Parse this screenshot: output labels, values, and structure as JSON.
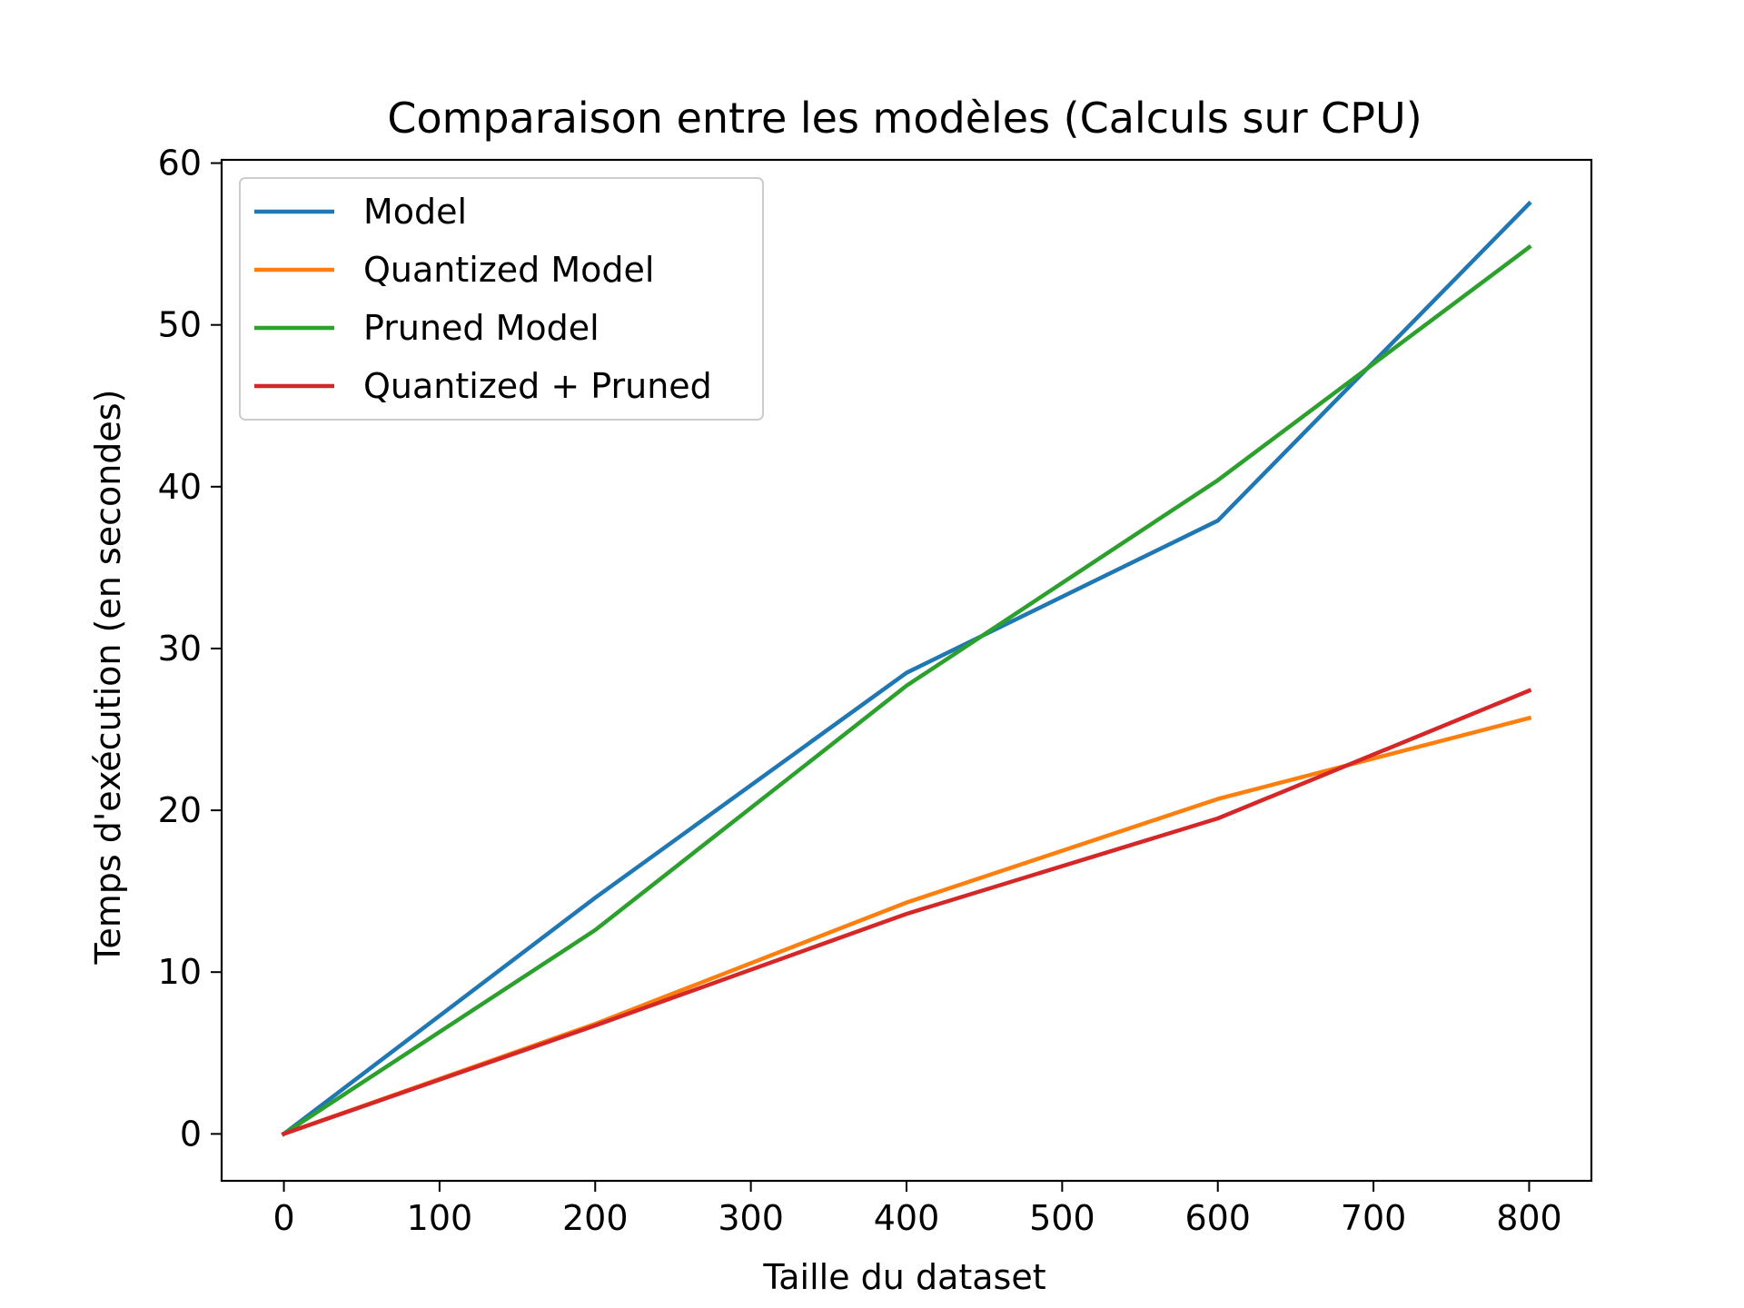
{
  "chart_data": {
    "type": "line",
    "title": "Comparaison entre les modèles (Calculs sur CPU)",
    "xlabel": "Taille du dataset",
    "ylabel": "Temps d'exécution (en secondes)",
    "xlim": [
      -40,
      840
    ],
    "ylim": [
      -2.9,
      60.2
    ],
    "xticks": [
      0,
      100,
      200,
      300,
      400,
      500,
      600,
      700,
      800
    ],
    "yticks": [
      0,
      10,
      20,
      30,
      40,
      50,
      60
    ],
    "grid": false,
    "legend_position": "top-left",
    "x": [
      0,
      200,
      400,
      600,
      800
    ],
    "series": [
      {
        "name": "Model",
        "color": "#1f77b4",
        "values": [
          0,
          14.6,
          28.5,
          37.9,
          57.5
        ]
      },
      {
        "name": "Quantized Model",
        "color": "#ff7f0e",
        "values": [
          0,
          6.8,
          14.3,
          20.7,
          25.7
        ]
      },
      {
        "name": "Pruned Model",
        "color": "#2ca02c",
        "values": [
          0,
          12.6,
          27.7,
          40.4,
          54.8
        ]
      },
      {
        "name": "Quantized + Pruned",
        "color": "#d62728",
        "values": [
          0,
          6.7,
          13.6,
          19.5,
          27.4
        ]
      }
    ]
  }
}
